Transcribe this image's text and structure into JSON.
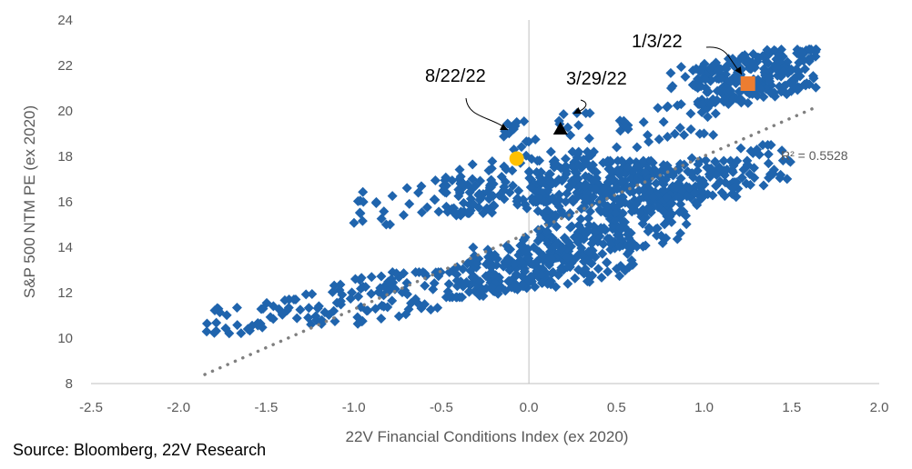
{
  "chart_data": {
    "type": "scatter",
    "title": "",
    "xlabel": "22V Financial Conditions Index (ex 2020)",
    "ylabel": "S&P 500 NTM PE (ex 2020)",
    "xlim": [
      -2.5,
      2.0
    ],
    "ylim": [
      8,
      24
    ],
    "x_ticks": [
      "-2.5",
      "-2.0",
      "-1.5",
      "-1.0",
      "-0.5",
      "0.0",
      "0.5",
      "1.0",
      "1.5",
      "2.0"
    ],
    "y_ticks": [
      "8",
      "10",
      "12",
      "14",
      "16",
      "18",
      "20",
      "22",
      "24"
    ],
    "grid": false,
    "series_color": "#1F64AD",
    "trendline": {
      "type": "linear",
      "x": [
        -1.85,
        1.62
      ],
      "y": [
        8.4,
        20.1
      ],
      "color": "#7F7F7F",
      "style": "dotted",
      "r_squared_label": "R² = 0.5528"
    },
    "highlights": [
      {
        "label": "1/3/22",
        "x": 1.25,
        "y": 21.2,
        "marker": "square",
        "color": "#ED7D31"
      },
      {
        "label": "3/29/22",
        "x": 0.18,
        "y": 19.2,
        "marker": "triangle",
        "color": "#000000"
      },
      {
        "label": "8/22/22",
        "x": -0.07,
        "y": 17.9,
        "marker": "circle",
        "color": "#FFC000"
      }
    ],
    "clusters": [
      {
        "x": [
          -1.85,
          -1.3
        ],
        "y": [
          10.2,
          11.7
        ],
        "n": 40
      },
      {
        "x": [
          -1.3,
          -0.5
        ],
        "y": [
          10.6,
          12.9
        ],
        "n": 90
      },
      {
        "x": [
          -0.5,
          0.2
        ],
        "y": [
          11.8,
          13.8
        ],
        "n": 110
      },
      {
        "x": [
          -0.35,
          0.6
        ],
        "y": [
          12.0,
          14.8
        ],
        "n": 150
      },
      {
        "x": [
          0.05,
          0.9
        ],
        "y": [
          13.5,
          16.5
        ],
        "n": 180
      },
      {
        "x": [
          0.4,
          1.2
        ],
        "y": [
          15.5,
          17.8
        ],
        "n": 130
      },
      {
        "x": [
          0.7,
          1.5
        ],
        "y": [
          16.2,
          18.5
        ],
        "n": 70
      },
      {
        "x": [
          -1.0,
          -0.2
        ],
        "y": [
          15.0,
          17.0
        ],
        "n": 55
      },
      {
        "x": [
          -0.5,
          0.4
        ],
        "y": [
          15.5,
          18.2
        ],
        "n": 120
      },
      {
        "x": [
          0.0,
          0.7
        ],
        "y": [
          16.0,
          17.8
        ],
        "n": 150
      },
      {
        "x": [
          -0.2,
          0.35
        ],
        "y": [
          18.3,
          19.9
        ],
        "n": 25
      },
      {
        "x": [
          0.5,
          1.1
        ],
        "y": [
          18.4,
          20.4
        ],
        "n": 35
      },
      {
        "x": [
          0.95,
          1.65
        ],
        "y": [
          20.3,
          22.7
        ],
        "n": 150
      },
      {
        "x": [
          0.8,
          1.15
        ],
        "y": [
          21.0,
          22.2
        ],
        "n": 20
      },
      {
        "x": [
          1.1,
          1.65
        ],
        "y": [
          20.5,
          22.6
        ],
        "n": 60
      }
    ]
  },
  "source": "Source: Bloomberg, 22V Research"
}
